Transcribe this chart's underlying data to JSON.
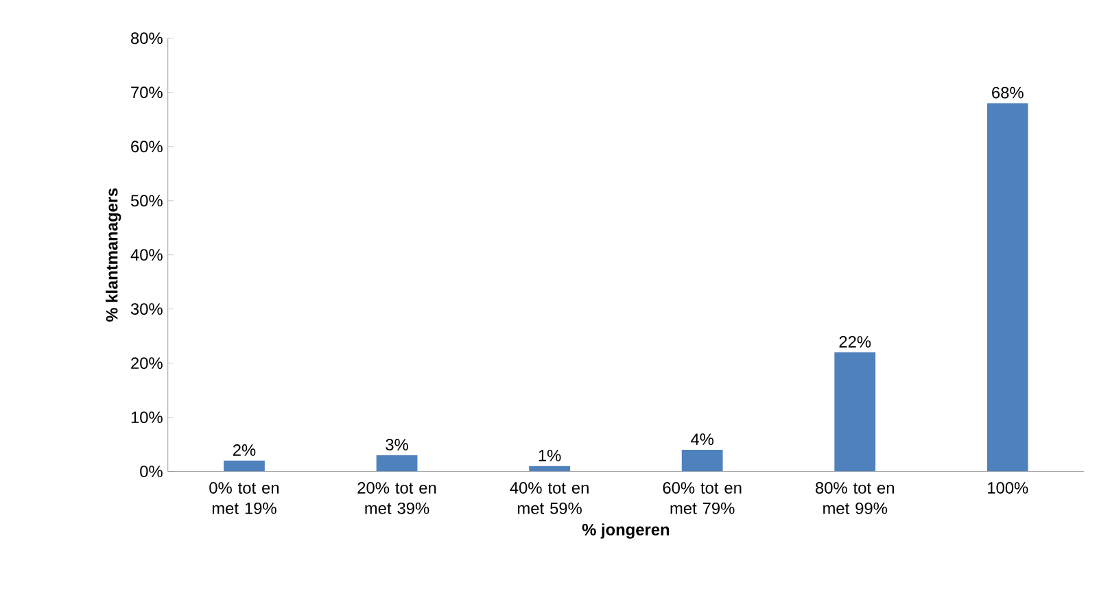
{
  "chart_data": {
    "type": "bar",
    "xlabel": "% jongeren",
    "ylabel": "% klantmanagers",
    "categories": [
      "0% tot en met 19%",
      "20% tot en met 39%",
      "40% tot en met 59%",
      "60% tot en met 79%",
      "80% tot en met 99%",
      "100%"
    ],
    "values": [
      2,
      3,
      1,
      4,
      22,
      68
    ],
    "value_labels": [
      "2%",
      "3%",
      "1%",
      "4%",
      "22%",
      "68%"
    ],
    "color": "#4f81bd",
    "ylim": [
      0,
      80
    ],
    "yticks": [
      {
        "value": 0,
        "label": "0%"
      },
      {
        "value": 10,
        "label": "10%"
      },
      {
        "value": 20,
        "label": "20%"
      },
      {
        "value": 30,
        "label": "30%"
      },
      {
        "value": 40,
        "label": "40%"
      },
      {
        "value": 50,
        "label": "50%"
      },
      {
        "value": 60,
        "label": "60%"
      },
      {
        "value": 70,
        "label": "70%"
      },
      {
        "value": 80,
        "label": "80%"
      }
    ],
    "grid": false
  }
}
